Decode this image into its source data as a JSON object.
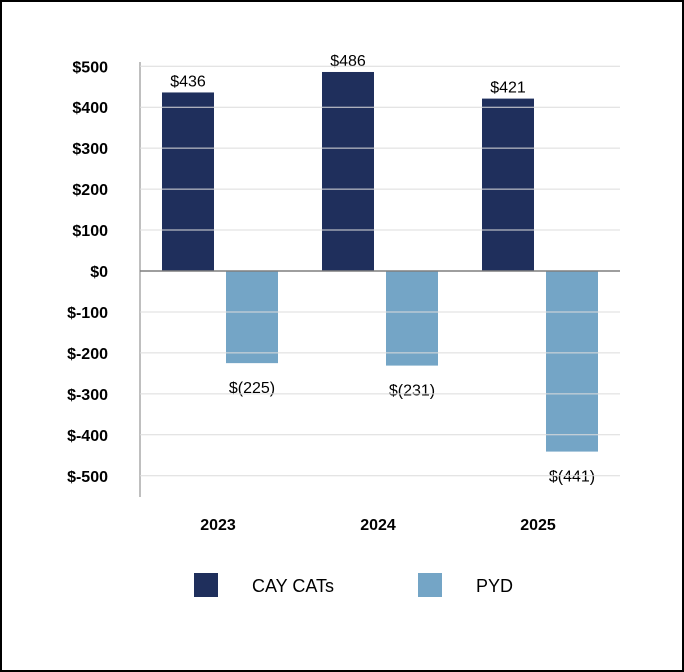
{
  "chart_data": {
    "type": "bar",
    "categories": [
      "2023",
      "2024",
      "2025"
    ],
    "series": [
      {
        "name": "CAY CATs",
        "color": "#1f2f5c",
        "values": [
          436,
          486,
          421
        ],
        "labels": [
          "$436",
          "$486",
          "$421"
        ]
      },
      {
        "name": "PYD",
        "color": "#74a5c6",
        "values": [
          -225,
          -231,
          -441
        ],
        "labels": [
          "$(225)",
          "$(231)",
          "$(441)"
        ]
      }
    ],
    "ylim": [
      -550,
      500
    ],
    "yticks": [
      500,
      400,
      300,
      200,
      100,
      0,
      -100,
      -200,
      -300,
      -400,
      -500
    ],
    "ytick_labels": [
      "$500",
      "$400",
      "$300",
      "$200",
      "$100",
      "$0",
      "$-100",
      "$-200",
      "$-300",
      "$-400",
      "$-500"
    ],
    "grid": true,
    "legend": "bottom",
    "title": "",
    "xlabel": "",
    "ylabel": ""
  }
}
